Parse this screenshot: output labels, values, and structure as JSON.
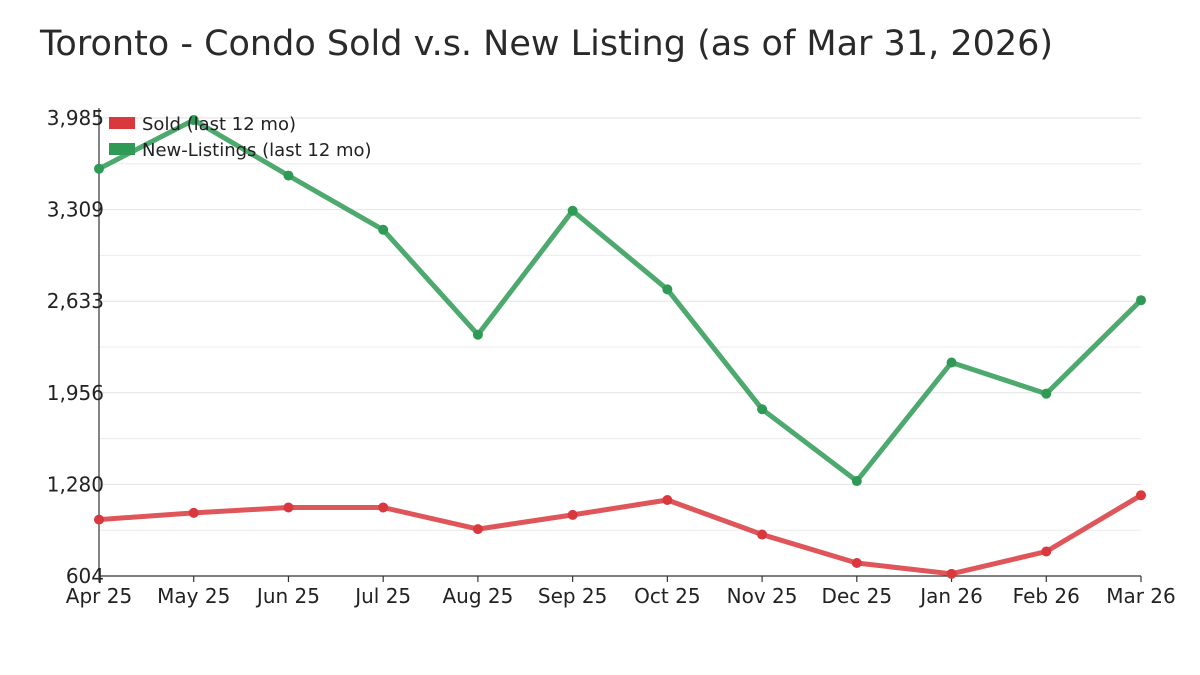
{
  "chart_data": {
    "type": "line",
    "title": "Toronto - Condo Sold v.s. New Listing (as of Mar 31, 2026)",
    "xlabel": "",
    "ylabel": "",
    "categories": [
      "Apr 25",
      "May 25",
      "Jun 25",
      "Jul 25",
      "Aug 25",
      "Sep 25",
      "Oct 25",
      "Nov 25",
      "Dec 25",
      "Jan 26",
      "Feb 26",
      "Mar 26"
    ],
    "y_ticks": [
      "3,985",
      "3,309",
      "2,633",
      "1,956",
      "1,280",
      "604"
    ],
    "ylim": [
      604,
      3985
    ],
    "grid": true,
    "legend_position": "top-left",
    "series": [
      {
        "name": "Sold (last 12 mo)",
        "color": "#d9383d",
        "values": [
          1020,
          1070,
          1110,
          1110,
          950,
          1055,
          1165,
          910,
          700,
          620,
          785,
          1200
        ]
      },
      {
        "name": "New-Listings (last 12 mo)",
        "color": "#2e9a55",
        "values": [
          3610,
          3970,
          3560,
          3160,
          2385,
          3300,
          2720,
          1835,
          1305,
          2180,
          1950,
          2640
        ]
      }
    ]
  }
}
